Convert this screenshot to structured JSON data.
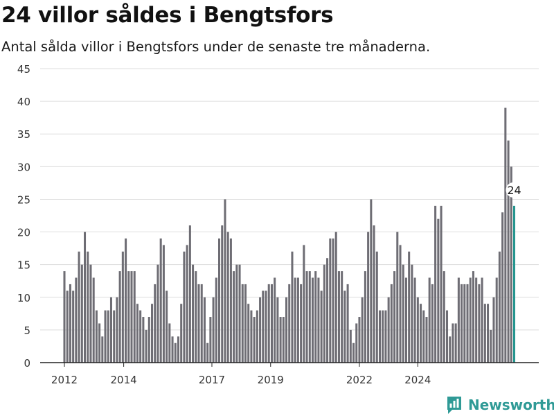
{
  "title": "24 villor såldes i Bengtsfors",
  "subtitle": "Antal sålda villor i Bengtsfors under de senaste tre månaderna.",
  "brand": {
    "name": "Newsworthy"
  },
  "colors": {
    "bar": "#6e6d74",
    "highlight": "#25958f",
    "grid": "#dddddd",
    "axis": "#222222",
    "brand": "#2f9a96"
  },
  "chart_data": {
    "type": "bar",
    "title": "24 villor såldes i Bengtsfors",
    "subtitle": "Antal sålda villor i Bengtsfors under de senaste tre månaderna.",
    "xlabel": "",
    "ylabel": "",
    "ylim": [
      0,
      45
    ],
    "yticks": [
      0,
      5,
      10,
      15,
      20,
      25,
      30,
      35,
      40,
      45
    ],
    "xticks": [
      "2012",
      "2014",
      "2017",
      "2019",
      "2022",
      "2024"
    ],
    "grid": true,
    "highlight_label": "24",
    "series": [
      {
        "values": [
          14,
          11,
          12,
          11,
          13,
          17,
          15,
          20,
          17,
          15,
          13,
          8,
          6,
          4,
          8,
          8,
          10,
          8,
          10,
          14,
          17,
          19,
          14,
          14,
          14,
          9,
          8,
          7,
          5,
          7,
          9,
          12,
          15,
          19,
          18,
          11,
          6,
          4,
          3,
          4,
          9,
          17,
          18,
          21,
          15,
          14,
          12,
          12,
          10,
          3,
          7,
          10,
          13,
          19,
          21,
          25,
          20,
          19,
          14,
          15,
          15,
          12,
          12,
          9,
          8,
          7,
          8,
          10,
          11,
          11,
          12,
          12,
          13,
          10,
          7,
          7,
          10,
          12,
          17,
          13,
          13,
          12,
          18,
          14,
          14,
          13,
          14,
          13,
          11,
          15,
          16,
          19,
          19,
          20,
          14,
          14,
          11,
          12,
          5,
          3,
          6,
          7,
          10,
          14,
          20,
          25,
          21,
          17,
          8,
          8,
          8,
          10,
          12,
          14,
          20,
          18,
          15,
          13,
          17,
          15,
          13,
          10,
          9,
          8,
          7,
          13,
          12,
          24,
          22,
          24,
          14,
          8,
          4,
          6,
          6,
          13,
          12,
          12,
          12,
          13,
          14,
          13,
          12,
          13,
          9,
          9,
          5,
          10,
          13,
          17,
          23,
          39,
          34,
          30,
          24
        ]
      }
    ]
  }
}
